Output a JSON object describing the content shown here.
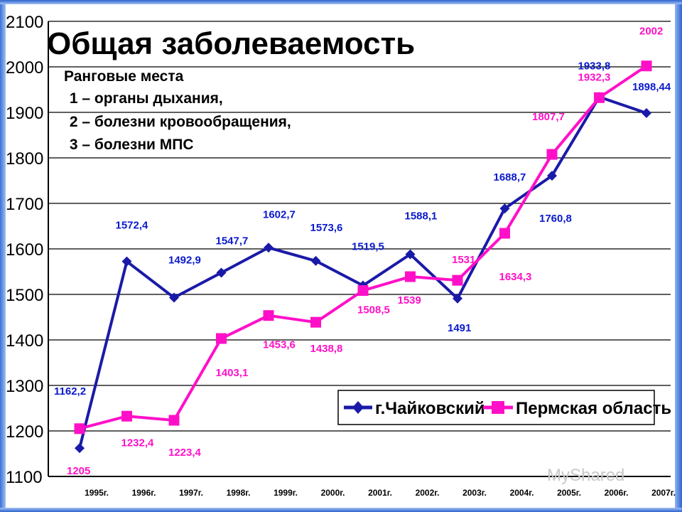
{
  "chart_data": {
    "type": "line",
    "title": "Общая заболеваемость",
    "annotation_lines": [
      "Ранговые места",
      " 1 – органы дыхания,",
      " 2 – болезни кровообращения,",
      " 3 – болезни МПС"
    ],
    "categories": [
      "1995г.",
      "1996г.",
      "1997г.",
      "1998г.",
      "1999г.",
      "2000г.",
      "2001г.",
      "2002г.",
      "2003г.",
      "2004г.",
      "2005г.",
      "2006г.",
      "2007г."
    ],
    "series": [
      {
        "name": "г.Чайковский",
        "color": "#1a1aa8",
        "marker": "diamond",
        "values": [
          1162.2,
          1572.4,
          1492.9,
          1547.7,
          1602.7,
          1573.6,
          1519.5,
          1588.1,
          1491,
          1688.7,
          1760.8,
          1933.8,
          1898.44
        ],
        "labels": [
          "1162,2",
          "1572,4",
          "1492,9",
          "1547,7",
          "1602,7",
          "1573,6",
          "1519,5",
          "1588,1",
          "1491",
          "1688,7",
          "1760,8",
          "1933,8",
          "1898,44"
        ]
      },
      {
        "name": "Пермская область",
        "color": "#ff10c8",
        "marker": "square",
        "values": [
          1205,
          1232.4,
          1223.4,
          1403.1,
          1453.6,
          1438.8,
          1508.5,
          1539,
          1531,
          1634.3,
          1807.7,
          1932.3,
          2002
        ],
        "labels": [
          "1205",
          "1232,4",
          "1223,4",
          "1403,1",
          "1453,6",
          "1438,8",
          "1508,5",
          "1539",
          "1531",
          "1634,3",
          "1807,7",
          "1932,3",
          "2002"
        ]
      }
    ],
    "ylim": [
      1100,
      2100
    ],
    "yticks": [
      1100,
      1200,
      1300,
      1400,
      1500,
      1600,
      1700,
      1800,
      1900,
      2000,
      2100
    ],
    "grid": true,
    "legend_placement": "bottom-right"
  },
  "watermark": "MyShared"
}
